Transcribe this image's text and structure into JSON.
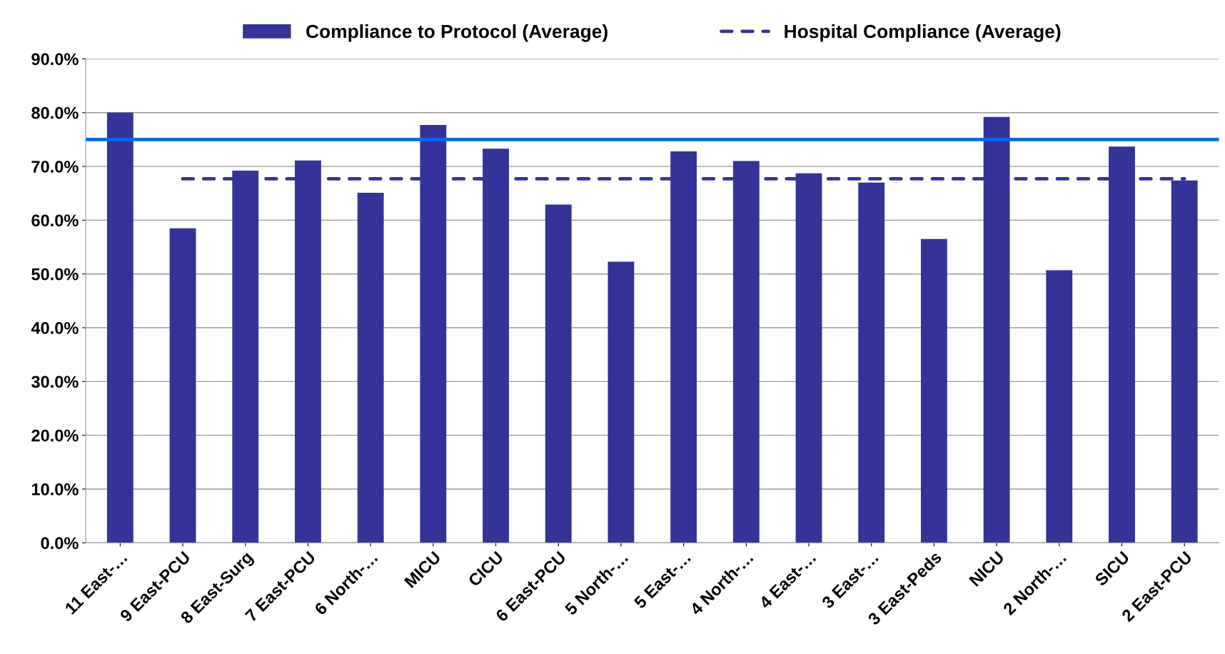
{
  "chart_data": {
    "type": "bar",
    "categories": [
      "11 East-…",
      "9 East-PCU",
      "8 East-Surg",
      "7 East-PCU",
      "6 North-…",
      "MICU",
      "CICU",
      "6 East-PCU",
      "5 North-…",
      "5 East-…",
      "4 North-…",
      "4 East-…",
      "3 East-…",
      "3 East-Peds",
      "NICU",
      "2 North-…",
      "SICU",
      "2 East-PCU"
    ],
    "series": [
      {
        "name": "Compliance to Protocol (Average)",
        "color": "#333399",
        "values": [
          80.0,
          58.5,
          69.2,
          71.1,
          65.1,
          77.7,
          73.3,
          62.9,
          52.3,
          72.8,
          71.0,
          68.7,
          67.0,
          56.5,
          79.2,
          50.7,
          73.7,
          67.4
        ]
      },
      {
        "name": "Hospital Compliance (Average)",
        "type": "line",
        "color": "#333399",
        "line_style": "dashed",
        "values": [
          null,
          67.7,
          67.7,
          67.7,
          67.7,
          67.7,
          67.7,
          67.7,
          67.7,
          67.7,
          67.7,
          67.7,
          67.7,
          67.7,
          67.7,
          67.7,
          67.7,
          67.7
        ]
      }
    ],
    "ref_lines": [
      {
        "axis": "y",
        "value": 75.0,
        "color": "#0066ff",
        "line_style": "solid"
      }
    ],
    "ylim": [
      0,
      90
    ],
    "yticks": [
      {
        "value": 0,
        "label": "0.0%"
      },
      {
        "value": 10,
        "label": "10.0%"
      },
      {
        "value": 20,
        "label": "20.0%"
      },
      {
        "value": 30,
        "label": "30.0%"
      },
      {
        "value": 40,
        "label": "40.0%"
      },
      {
        "value": 50,
        "label": "50.0%"
      },
      {
        "value": 60,
        "label": "60.0%"
      },
      {
        "value": 70,
        "label": "70.0%"
      },
      {
        "value": 80,
        "label": "80.0%"
      },
      {
        "value": 90,
        "label": "90.0%"
      }
    ],
    "grid": "y",
    "legend": "top"
  }
}
